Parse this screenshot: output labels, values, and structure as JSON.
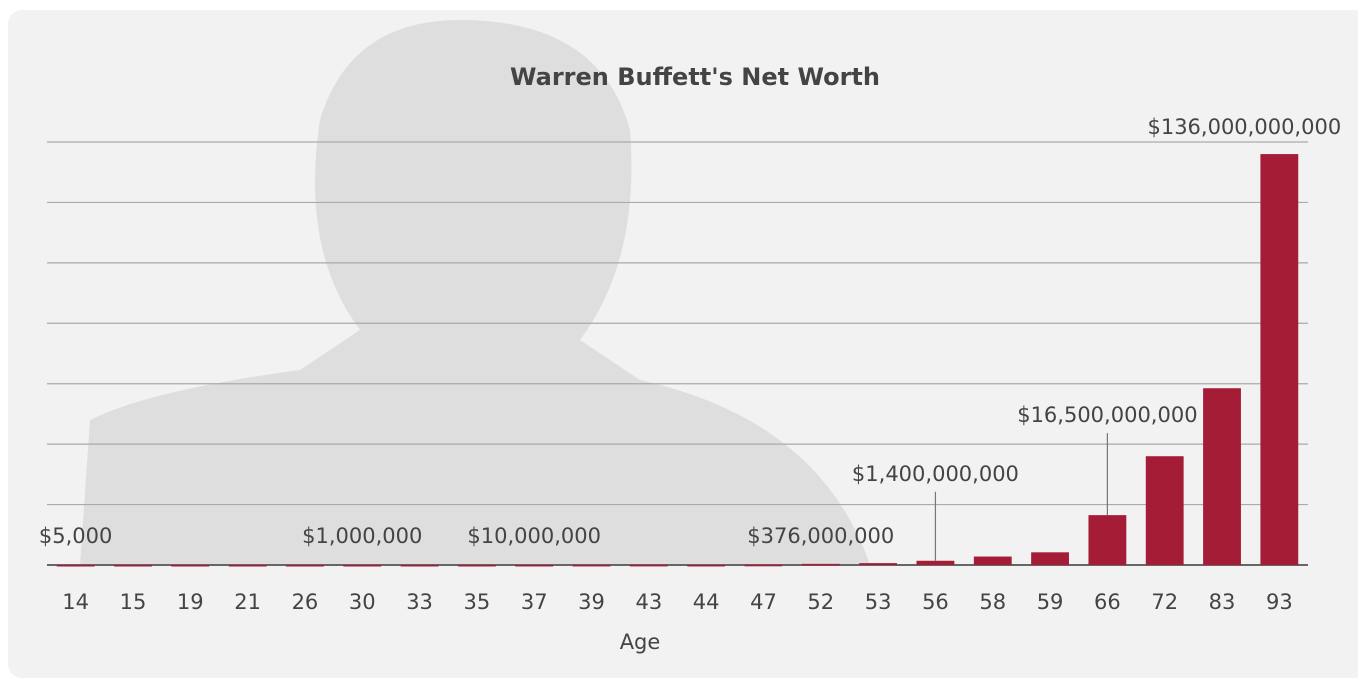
{
  "chart_data": {
    "type": "bar",
    "title": "Warren Buffett's Net Worth",
    "x_label": "Age",
    "categories": [
      "14",
      "15",
      "19",
      "21",
      "26",
      "30",
      "33",
      "35",
      "37",
      "39",
      "43",
      "44",
      "47",
      "52",
      "53",
      "56",
      "58",
      "59",
      "66",
      "72",
      "83",
      "93"
    ],
    "values": [
      5000,
      6000,
      9800,
      20000,
      140000,
      1000000,
      7000000,
      7000000,
      10000000,
      25000000,
      34000000,
      19000000,
      67000000,
      376000000,
      620000000,
      1400000000,
      2800000000,
      4200000000,
      16500000000,
      36000000000,
      58500000000,
      136000000000
    ],
    "value_labels": [
      "$5,000",
      null,
      null,
      null,
      null,
      "$1,000,000",
      null,
      null,
      "$10,000,000",
      null,
      null,
      null,
      null,
      "$376,000,000",
      null,
      "$1,400,000,000",
      null,
      null,
      "$16,500,000,000",
      null,
      null,
      "$136,000,000,000"
    ],
    "color": "#a51c36",
    "ylim": [
      0,
      140000000000
    ],
    "yticks": [
      0,
      20000000000,
      40000000000,
      60000000000,
      80000000000,
      100000000000,
      120000000000,
      140000000000
    ],
    "grid": true
  }
}
